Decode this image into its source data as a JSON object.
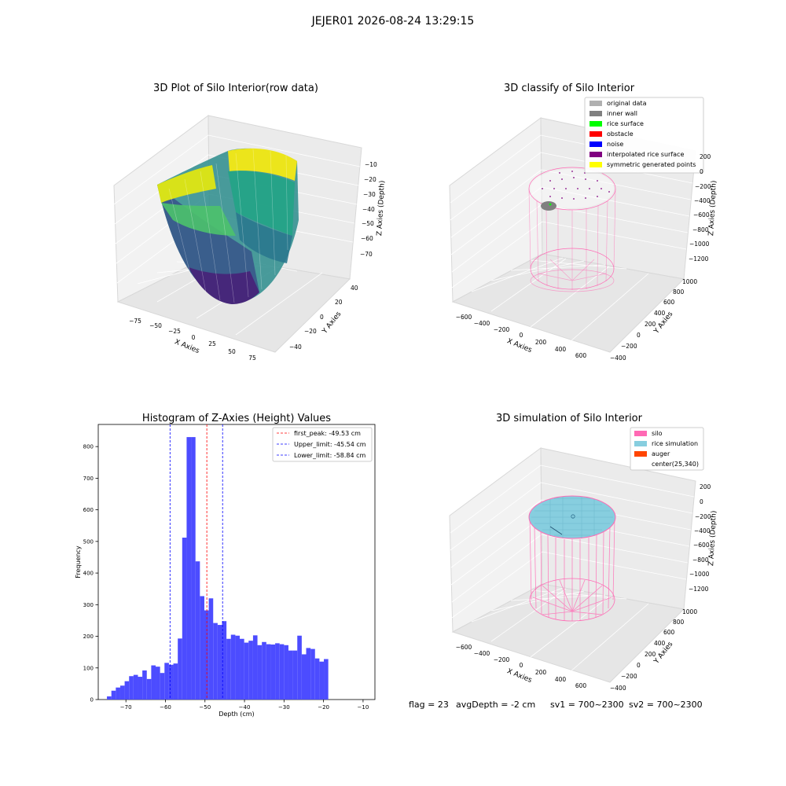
{
  "suptitle": "JEJER01 2026-08-24 13:29:15",
  "footer": {
    "flag": "flag = 23",
    "avg_depth": "avgDepth = -2 cm",
    "sv1": "sv1 = 700~2300",
    "sv2": "sv2 = 700~2300"
  },
  "colors": {
    "histogram": "#4c4cff",
    "first_peak": "#ff0000",
    "limits": "#0000ff",
    "silo": "#ff69b4",
    "rice_simulation": "#87cedf",
    "auger": "#ff4500"
  },
  "panels": {
    "raw": {
      "title": "3D Plot of Silo Interior(row data)",
      "xlabel": "X Axies",
      "ylabel": "Y Axies",
      "zlabel": "Z Axies (Depth)",
      "xticks": [
        "−75",
        "−50",
        "−25",
        "0",
        "25",
        "50",
        "75"
      ],
      "yticks": [
        "40",
        "20",
        "0",
        "−20",
        "−40"
      ],
      "zticks": [
        "−10",
        "−20",
        "−30",
        "−40",
        "−50",
        "−60",
        "−70"
      ]
    },
    "classify": {
      "title": "3D classify of Silo Interior",
      "xlabel": "X Axies",
      "ylabel": "Y Axies",
      "zlabel": "Z Axies (Depth)",
      "xticks": [
        "−600",
        "−400",
        "−200",
        "0",
        "200",
        "400",
        "600"
      ],
      "yticks": [
        "1000",
        "800",
        "600",
        "400",
        "200",
        "0",
        "−200",
        "−400"
      ],
      "zticks": [
        "200",
        "0",
        "−200",
        "−400",
        "−600",
        "−800",
        "−1000",
        "−1200"
      ],
      "legend": [
        {
          "label": "original data",
          "color": "#b0b0b0"
        },
        {
          "label": "inner wall",
          "color": "#808080"
        },
        {
          "label": "rice surface",
          "color": "#00ff00"
        },
        {
          "label": "obstacle",
          "color": "#ff0000"
        },
        {
          "label": "noise",
          "color": "#0000ff"
        },
        {
          "label": "interpolated rice surface",
          "color": "#800080"
        },
        {
          "label": "symmetric generated points",
          "color": "#ffff00"
        }
      ]
    },
    "simulation": {
      "title": "3D simulation of Silo Interior",
      "xlabel": "X Axies",
      "ylabel": "Y Axies",
      "zlabel": "Z Axies (Depth)",
      "xticks": [
        "−600",
        "−400",
        "−200",
        "0",
        "200",
        "400",
        "600"
      ],
      "yticks": [
        "1000",
        "800",
        "600",
        "400",
        "200",
        "0",
        "−200",
        "−400"
      ],
      "zticks": [
        "200",
        "0",
        "−200",
        "−400",
        "−600",
        "−800",
        "−1000",
        "−1200"
      ],
      "legend": [
        {
          "label": "silo",
          "color": "#ff69b4"
        },
        {
          "label": "rice simulation",
          "color": "#87cedf"
        },
        {
          "label": "auger",
          "color": "#ff4500"
        },
        {
          "label": "center(25,340)",
          "color": ""
        }
      ]
    }
  },
  "chart_data": {
    "type": "bar",
    "title": "Histogram of Z-Axies (Height) Values",
    "xlabel": "Depth (cm)",
    "ylabel": "Frequency",
    "xlim": [
      -77,
      -7
    ],
    "ylim": [
      0,
      870
    ],
    "xticks": [
      -70,
      -60,
      -50,
      -40,
      -30,
      -20,
      -10
    ],
    "yticks": [
      0,
      100,
      200,
      300,
      400,
      500,
      600,
      700,
      800
    ],
    "bin_width": 1.12,
    "bin_start": -74.8,
    "values": [
      10,
      28,
      38,
      44,
      58,
      74,
      78,
      72,
      92,
      65,
      108,
      104,
      84,
      116,
      110,
      114,
      193,
      512,
      830,
      830,
      437,
      327,
      282,
      320,
      242,
      236,
      248,
      192,
      205,
      202,
      192,
      180,
      186,
      203,
      172,
      182,
      175,
      174,
      178,
      175,
      172,
      155,
      155,
      202,
      143,
      163,
      160,
      130,
      120,
      128
    ],
    "lines": [
      {
        "label": "first_peak: -49.53 cm",
        "x": -49.53,
        "color": "#ff0000"
      },
      {
        "label": "Upper_limit: -45.54 cm",
        "x": -45.54,
        "color": "#0000ff"
      },
      {
        "label": "Lower_limit: -58.84 cm",
        "x": -58.84,
        "color": "#0000ff"
      }
    ],
    "legend_position": "top-right"
  }
}
